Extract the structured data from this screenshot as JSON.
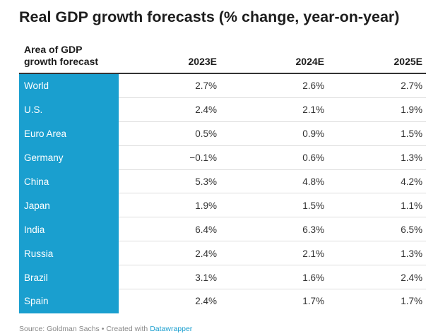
{
  "chart_data": {
    "type": "table",
    "title": "Real GDP growth forecasts (% change, year-on-year)",
    "columns": [
      "Area of GDP growth forecast",
      "2023E",
      "2024E",
      "2025E"
    ],
    "header": {
      "area_line1": "Area of GDP",
      "area_line2": "growth forecast"
    },
    "rows": [
      {
        "area": "World",
        "values": [
          "2.7%",
          "2.6%",
          "2.7%"
        ]
      },
      {
        "area": "U.S.",
        "values": [
          "2.4%",
          "2.1%",
          "1.9%"
        ]
      },
      {
        "area": "Euro Area",
        "values": [
          "0.5%",
          "0.9%",
          "1.5%"
        ]
      },
      {
        "area": "Germany",
        "values": [
          "−0.1%",
          "0.6%",
          "1.3%"
        ]
      },
      {
        "area": "China",
        "values": [
          "5.3%",
          "4.8%",
          "4.2%"
        ]
      },
      {
        "area": "Japan",
        "values": [
          "1.9%",
          "1.5%",
          "1.1%"
        ]
      },
      {
        "area": "India",
        "values": [
          "6.4%",
          "6.3%",
          "6.5%"
        ]
      },
      {
        "area": "Russia",
        "values": [
          "2.4%",
          "2.1%",
          "1.3%"
        ]
      },
      {
        "area": "Brazil",
        "values": [
          "3.1%",
          "1.6%",
          "2.4%"
        ]
      },
      {
        "area": "Spain",
        "values": [
          "2.4%",
          "1.7%",
          "1.7%"
        ]
      }
    ]
  },
  "footer": {
    "source": "Source: Goldman Sachs • Created with ",
    "tool": "Datawrapper"
  },
  "colors": {
    "accent": "#1a9fcf",
    "text": "#1d1d1d"
  }
}
